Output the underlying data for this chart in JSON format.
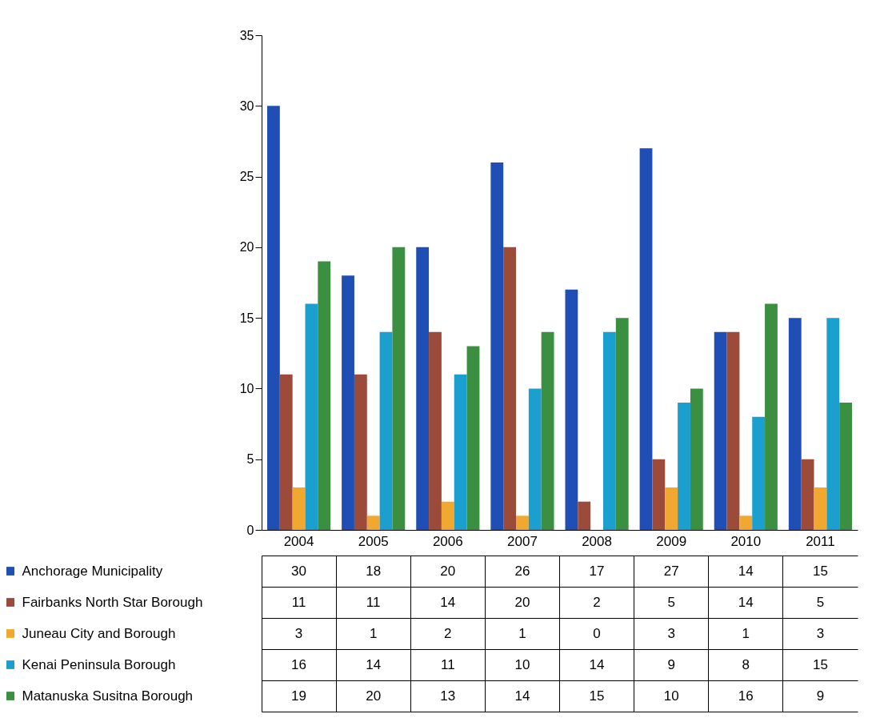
{
  "chart_data": {
    "type": "bar",
    "categories": [
      "2004",
      "2005",
      "2006",
      "2007",
      "2008",
      "2009",
      "2010",
      "2011"
    ],
    "series": [
      {
        "name": "Anchorage Municipality",
        "color": "#1f4fb4",
        "values": [
          30,
          18,
          20,
          26,
          17,
          27,
          14,
          15
        ]
      },
      {
        "name": "Fairbanks North Star Borough",
        "color": "#9c4a3a",
        "values": [
          11,
          11,
          14,
          20,
          2,
          5,
          14,
          5
        ]
      },
      {
        "name": "Juneau City and Borough",
        "color": "#f0a830",
        "values": [
          3,
          1,
          2,
          1,
          0,
          3,
          1,
          3
        ]
      },
      {
        "name": "Kenai Peninsula Borough",
        "color": "#1a9fcf",
        "values": [
          16,
          14,
          11,
          10,
          14,
          9,
          8,
          15
        ]
      },
      {
        "name": "Matanuska Susitna Borough",
        "color": "#3a8f40",
        "values": [
          19,
          20,
          13,
          14,
          15,
          10,
          16,
          9
        ]
      }
    ],
    "ylim": [
      0,
      35
    ],
    "yticks": [
      0,
      5,
      10,
      15,
      20,
      25,
      30,
      35
    ],
    "grid": false,
    "data_labels": true,
    "legend": "bottom"
  }
}
